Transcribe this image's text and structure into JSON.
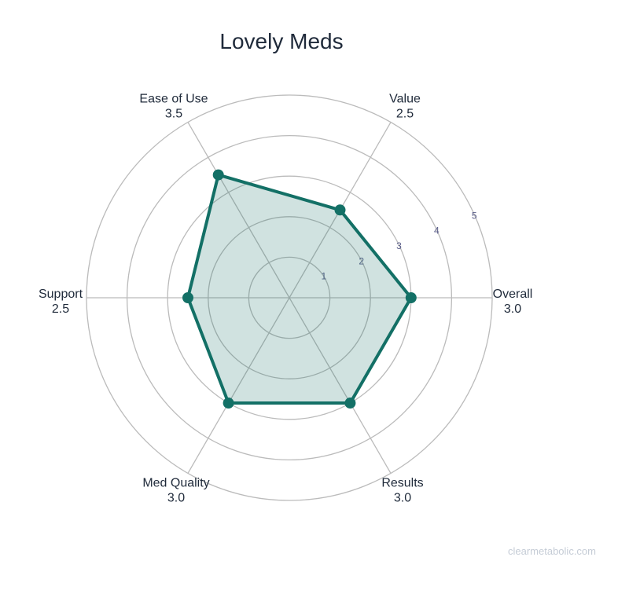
{
  "chart_data": {
    "type": "radar",
    "title": "Lovely Meds",
    "axes": [
      "Overall",
      "Results",
      "Med Quality",
      "Support",
      "Ease of Use",
      "Value"
    ],
    "values": [
      3.0,
      3.0,
      3.0,
      2.5,
      3.5,
      2.5
    ],
    "value_labels": [
      "3.0",
      "3.0",
      "3.0",
      "2.5",
      "3.5",
      "2.5"
    ],
    "rlim": [
      0,
      5
    ],
    "ticks": [
      "1",
      "2",
      "3",
      "4",
      "5"
    ],
    "grid": true,
    "colors": {
      "line": "#137066",
      "fill": "#137066",
      "grid": "#bbbbbb"
    }
  },
  "watermark": "clearmetabolic.com"
}
